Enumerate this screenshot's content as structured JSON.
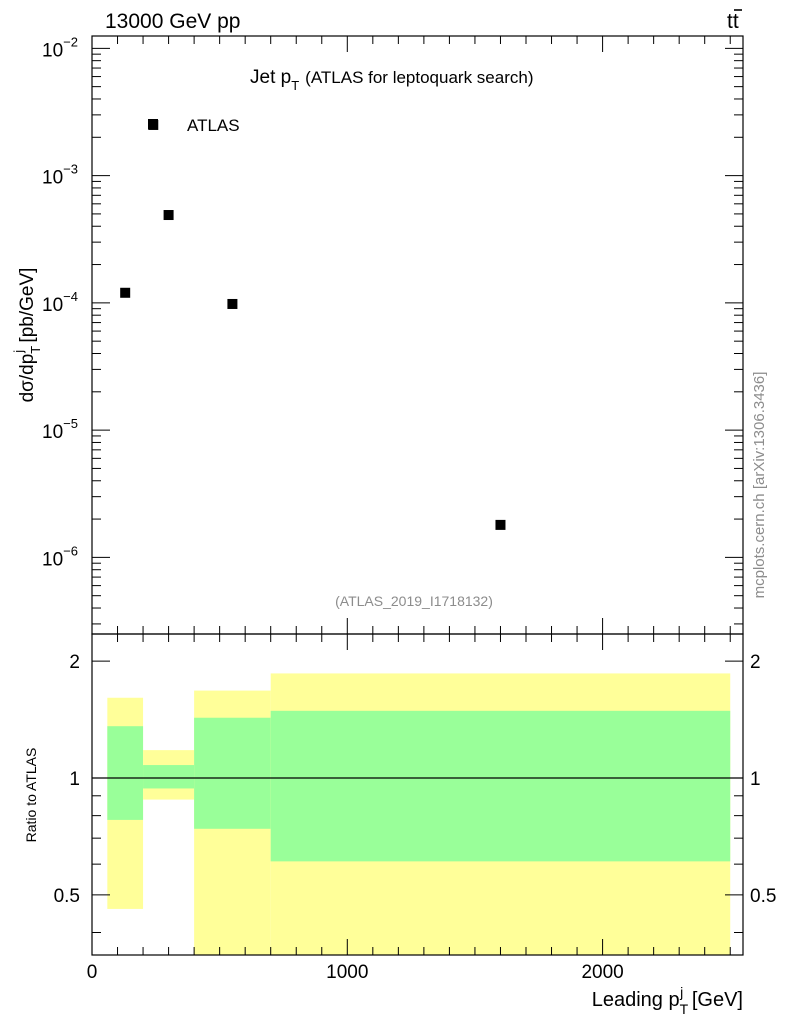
{
  "header": {
    "energy_label": "13000 GeV pp",
    "process_main": "tt",
    "process_bar": "̄"
  },
  "main_plot": {
    "title_main": "Jet p",
    "title_sub": "T",
    "title_rest": "(ATLAS for leptoquark search)",
    "ylabel_main": "dσ/dp",
    "ylabel_sub": "T",
    "ylabel_sup": "j",
    "ylabel_rest": " [pb/GeV]",
    "legend_label": "ATLAS",
    "analysis_id": "(ATLAS_2019_I1718132)",
    "y_tick_labels": [
      {
        "base": "10",
        "exp": "−2",
        "value": 0.01
      },
      {
        "base": "10",
        "exp": "−3",
        "value": 0.001
      },
      {
        "base": "10",
        "exp": "−4",
        "value": 0.0001
      },
      {
        "base": "10",
        "exp": "−5",
        "value": 1e-05
      },
      {
        "base": "10",
        "exp": "−6",
        "value": 1e-06
      }
    ]
  },
  "ratio_plot": {
    "ylabel": "Ratio to ATLAS",
    "y_tick_labels": [
      "2",
      "1",
      "0.5"
    ],
    "x_tick_labels": [
      "0",
      "1000",
      "2000"
    ]
  },
  "xlabel": {
    "main": "Leading p",
    "sub": "T",
    "sup": "j",
    "rest": " [GeV]"
  },
  "watermark": "mcplots.cern.ch [arXiv:1306.3436]",
  "colors": {
    "band_outer": "#ffff99",
    "band_inner": "#99ff99",
    "marker": "#000000",
    "analysis_text": "#8c8c8c"
  },
  "chart_data": {
    "type": "scatter",
    "x_unit": "GeV",
    "xlim": [
      0,
      2550
    ],
    "main": {
      "ylim": [
        2.5e-07,
        0.0125
      ],
      "log_y": true,
      "series": [
        {
          "name": "ATLAS",
          "x": [
            130,
            240,
            300,
            550,
            1600
          ],
          "y": [
            0.00012,
            0.0025,
            0.00049,
            9.8e-05,
            1.8e-06
          ]
        }
      ]
    },
    "ratio": {
      "ylim": [
        0.35,
        2.35
      ],
      "log_y": true,
      "reference_line": 1,
      "bins": [
        {
          "x": [
            60,
            200
          ],
          "outer": [
            0.46,
            1.61
          ],
          "inner": [
            0.78,
            1.36
          ]
        },
        {
          "x": [
            200,
            400
          ],
          "outer": [
            0.88,
            1.18
          ],
          "inner": [
            0.94,
            1.08
          ]
        },
        {
          "x": [
            400,
            700
          ],
          "outer": [
            0.35,
            1.68
          ],
          "inner": [
            0.74,
            1.43
          ]
        },
        {
          "x": [
            700,
            2500
          ],
          "outer": [
            0.35,
            1.86
          ],
          "inner": [
            0.61,
            1.49
          ]
        }
      ]
    }
  }
}
